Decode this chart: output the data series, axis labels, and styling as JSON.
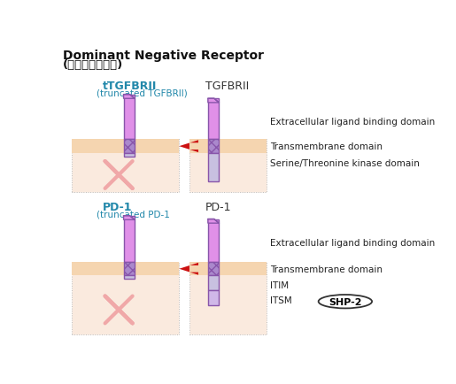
{
  "title_line1": "Dominant Negative Receptor",
  "title_line2": "(우성음성수용체)",
  "bg_color": "#ffffff",
  "membrane_color": "#f5d5b0",
  "cell_color": "#faeade",
  "receptor_purple_light": "#e090e8",
  "receptor_purple_mid": "#cc88dd",
  "receptor_purple_dark": "#8855aa",
  "receptor_hatch_color": "#aa88cc",
  "kinase_color": "#c8c0e0",
  "arrow_color": "#cc1111",
  "cross_color": "#f0a8a8",
  "label_color": "#222222",
  "tgfbrii_left_name": "tTGFBRII",
  "tgfbrii_left_sub": "(truncated TGFBRII)",
  "tgfbrii_right_name": "TGFBRII",
  "pd1_left_name": "PD-1",
  "pd1_left_sub": "(truncated PD-1",
  "pd1_right_name": "PD-1",
  "ext_label": "Extracellular ligand binding domain",
  "tm_label": "Transmembrane domain",
  "ser_label": "Serine/Threonine kinase domain",
  "itim_label": "ITIM",
  "itsm_label": "ITSM",
  "shp2_label": "SHP-2",
  "teal": "#2288aa"
}
